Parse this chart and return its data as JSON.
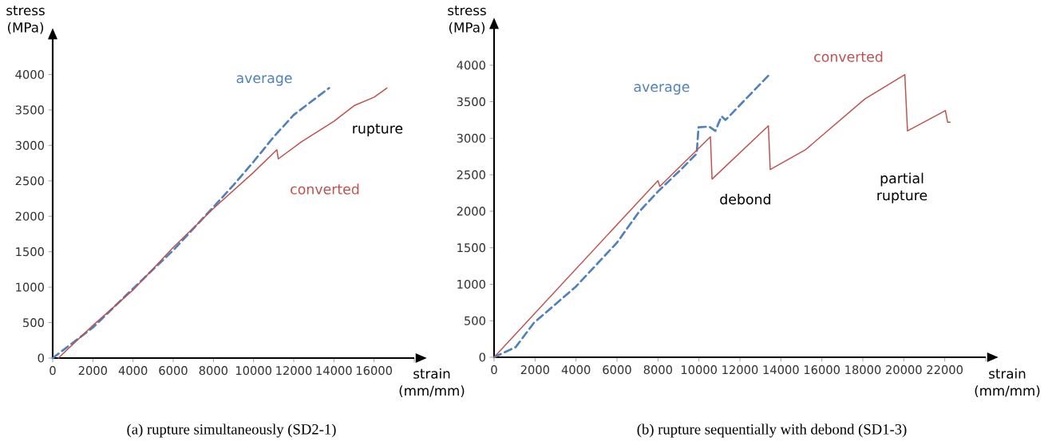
{
  "chart_data": [
    {
      "type": "line",
      "title": "(a) rupture simultaneously (SD2-1)",
      "xlabel": "strain (mm/mm)",
      "ylabel": "stress (MPa)",
      "xlim": [
        0,
        18000
      ],
      "ylim": [
        0,
        4500
      ],
      "xticks": [
        0,
        2000,
        4000,
        6000,
        8000,
        10000,
        12000,
        14000,
        16000,
        {
          "value": 18000,
          "label": null
        }
      ],
      "yticks": [
        0,
        500,
        1000,
        1500,
        2000,
        2500,
        3000,
        3500,
        4000,
        {
          "value": 4500,
          "label": null
        }
      ],
      "grid": false,
      "marker": "none",
      "annotations": [
        "rupture"
      ],
      "series": [
        {
          "name": "average",
          "color": "#4f81bd",
          "line_style": "dashed",
          "x": [
            0,
            2000,
            4000,
            6000,
            8000,
            9000,
            10000,
            11000,
            12000,
            13760
          ],
          "values": [
            0,
            430,
            980,
            1520,
            2130,
            2440,
            2770,
            3120,
            3430,
            3810
          ]
        },
        {
          "name": "converted",
          "color": "#c0504d",
          "line_style": "solid",
          "x": [
            280,
            2000,
            4000,
            6000,
            8000,
            10000,
            11160,
            11230,
            12380,
            14000,
            15000,
            16000,
            16640
          ],
          "values": [
            0,
            460,
            960,
            1560,
            2110,
            2620,
            2940,
            2810,
            3050,
            3340,
            3560,
            3680,
            3810
          ]
        }
      ]
    },
    {
      "type": "line",
      "title": "(b) rupture sequentially with debond (SD1-3)",
      "xlabel": "strain (mm/mm)",
      "ylabel": "stress (MPa)",
      "xlim": [
        0,
        24000
      ],
      "ylim": [
        0,
        4500
      ],
      "xticks": [
        0,
        2000,
        4000,
        6000,
        8000,
        10000,
        12000,
        14000,
        16000,
        18000,
        20000,
        22000,
        {
          "value": 24000,
          "label": null
        }
      ],
      "yticks": [
        0,
        500,
        1000,
        1500,
        2000,
        2500,
        3000,
        3500,
        4000,
        {
          "value": 4500,
          "label": null
        }
      ],
      "grid": false,
      "marker": "none",
      "annotations": [
        "debond",
        "partial rupture"
      ],
      "series": [
        {
          "name": "average",
          "color": "#4f81bd",
          "line_style": "dashed",
          "x": [
            0,
            1060,
            1940,
            4000,
            6000,
            7070,
            8000,
            9190,
            9890,
            9980,
            10500,
            10800,
            11100,
            11300,
            12400,
            13430
          ],
          "values": [
            0,
            140,
            470,
            970,
            1570,
            1990,
            2270,
            2590,
            2790,
            3150,
            3160,
            3100,
            3300,
            3250,
            3570,
            3870
          ]
        },
        {
          "name": "converted",
          "color": "#c0504d",
          "line_style": "solid",
          "x": [
            0,
            8000,
            8090,
            10560,
            10640,
            13390,
            13480,
            15190,
            18110,
            20050,
            20180,
            21640,
            22030,
            22140,
            22260
          ],
          "values": [
            0,
            2420,
            2340,
            3020,
            2440,
            3170,
            2570,
            2840,
            3540,
            3870,
            3100,
            3320,
            3380,
            3220,
            3220
          ]
        }
      ]
    }
  ]
}
